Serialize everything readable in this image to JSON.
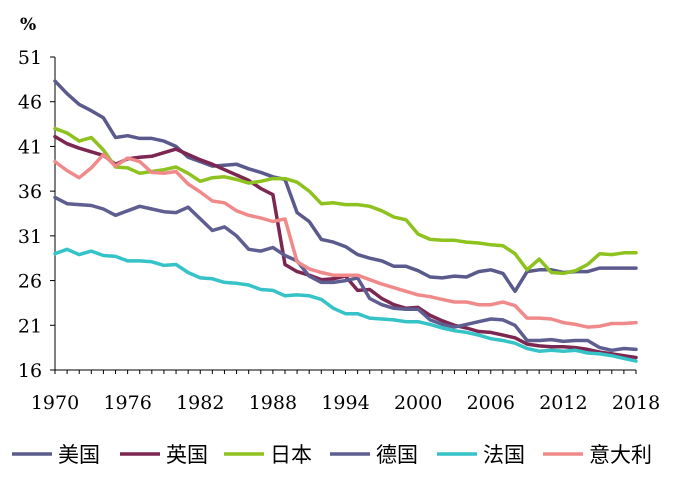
{
  "chart_data": {
    "type": "line",
    "title": "",
    "ylabel": "%",
    "xlabel": "",
    "ylim": [
      16,
      51
    ],
    "xlim": [
      1970,
      2018
    ],
    "yticks": [
      16,
      21,
      26,
      31,
      36,
      41,
      46,
      51
    ],
    "xticks": [
      1970,
      1976,
      1982,
      1988,
      1994,
      2000,
      2006,
      2012,
      2018
    ],
    "legend_position": "bottom",
    "series": [
      {
        "name": "美国",
        "color": "#5b5a8c",
        "x": [
          1970,
          1971,
          1972,
          1973,
          1974,
          1975,
          1976,
          1977,
          1978,
          1979,
          1980,
          1981,
          1982,
          1983,
          1984,
          1985,
          1986,
          1987,
          1988,
          1989,
          1990,
          1991,
          1992,
          1993,
          1994,
          1995,
          1996,
          1997,
          1998,
          1999,
          2000,
          2001,
          2002,
          2003,
          2004,
          2005,
          2006,
          2007,
          2008,
          2009,
          2010,
          2011,
          2012,
          2013,
          2014,
          2015,
          2016,
          2017,
          2018
        ],
        "values": [
          48.3,
          46.9,
          45.7,
          45.0,
          44.2,
          42.0,
          42.2,
          41.9,
          41.9,
          41.6,
          41.0,
          39.8,
          39.3,
          38.8,
          38.9,
          39.0,
          38.5,
          38.1,
          37.6,
          37.3,
          33.6,
          32.6,
          30.6,
          30.3,
          29.8,
          28.9,
          28.5,
          28.2,
          27.6,
          27.6,
          27.1,
          26.4,
          26.3,
          26.5,
          26.4,
          27.0,
          27.2,
          26.8,
          24.8,
          27.0,
          27.2,
          27.2,
          26.9,
          27.0,
          27.0,
          27.4,
          27.4,
          27.4,
          27.4
        ]
      },
      {
        "name": "英国",
        "color": "#7b2752",
        "x": [
          1970,
          1971,
          1972,
          1973,
          1974,
          1975,
          1976,
          1977,
          1978,
          1979,
          1980,
          1981,
          1982,
          1983,
          1984,
          1985,
          1986,
          1987,
          1988,
          1989,
          1990,
          1991,
          1992,
          1993,
          1994,
          1995,
          1996,
          1997,
          1998,
          1999,
          2000,
          2001,
          2002,
          2003,
          2004,
          2005,
          2006,
          2007,
          2008,
          2009,
          2010,
          2011,
          2012,
          2013,
          2014,
          2015,
          2016,
          2017,
          2018
        ],
        "values": [
          42.1,
          41.3,
          40.8,
          40.4,
          40.0,
          39.0,
          39.6,
          39.8,
          39.9,
          40.3,
          40.7,
          40.1,
          39.5,
          39.0,
          38.4,
          37.8,
          37.2,
          36.3,
          35.6,
          27.8,
          27.0,
          26.6,
          26.1,
          26.2,
          26.5,
          24.9,
          25.0,
          24.0,
          23.3,
          22.9,
          23.0,
          22.1,
          21.5,
          21.0,
          20.7,
          20.3,
          20.2,
          19.9,
          19.6,
          18.9,
          18.7,
          18.6,
          18.6,
          18.5,
          18.3,
          18.0,
          17.8,
          17.6,
          17.4
        ]
      },
      {
        "name": "日本",
        "color": "#8dc21f",
        "x": [
          1970,
          1971,
          1972,
          1973,
          1974,
          1975,
          1976,
          1977,
          1978,
          1979,
          1980,
          1981,
          1982,
          1983,
          1984,
          1985,
          1986,
          1987,
          1988,
          1989,
          1990,
          1991,
          1992,
          1993,
          1994,
          1995,
          1996,
          1997,
          1998,
          1999,
          2000,
          2001,
          2002,
          2003,
          2004,
          2005,
          2006,
          2007,
          2008,
          2009,
          2010,
          2011,
          2012,
          2013,
          2014,
          2015,
          2016,
          2017,
          2018
        ],
        "values": [
          43.0,
          42.5,
          41.6,
          42.0,
          40.6,
          38.7,
          38.6,
          38.0,
          38.2,
          38.4,
          38.7,
          38.0,
          37.1,
          37.5,
          37.6,
          37.3,
          36.9,
          37.1,
          37.4,
          37.4,
          37.0,
          36.0,
          34.6,
          34.7,
          34.5,
          34.5,
          34.3,
          33.8,
          33.1,
          32.8,
          31.2,
          30.6,
          30.5,
          30.5,
          30.3,
          30.2,
          30.0,
          29.9,
          29.0,
          27.2,
          28.4,
          26.9,
          26.8,
          27.1,
          27.8,
          29.0,
          28.9,
          29.1,
          29.1
        ]
      },
      {
        "name": "德国",
        "color": "#5f5e91",
        "x": [
          1970,
          1971,
          1972,
          1973,
          1974,
          1975,
          1976,
          1977,
          1978,
          1979,
          1980,
          1981,
          1982,
          1983,
          1984,
          1985,
          1986,
          1987,
          1988,
          1989,
          1990,
          1991,
          1992,
          1993,
          1994,
          1995,
          1996,
          1997,
          1998,
          1999,
          2000,
          2001,
          2002,
          2003,
          2004,
          2005,
          2006,
          2007,
          2008,
          2009,
          2010,
          2011,
          2012,
          2013,
          2014,
          2015,
          2016,
          2017,
          2018
        ],
        "values": [
          35.3,
          34.6,
          34.5,
          34.4,
          34.0,
          33.3,
          33.8,
          34.3,
          34.0,
          33.7,
          33.6,
          34.2,
          32.9,
          31.6,
          32.0,
          31.0,
          29.5,
          29.3,
          29.7,
          28.8,
          28.2,
          26.5,
          25.8,
          25.8,
          26.0,
          26.3,
          24.0,
          23.3,
          22.9,
          22.8,
          22.8,
          21.6,
          21.1,
          20.8,
          21.1,
          21.4,
          21.7,
          21.6,
          21.0,
          19.3,
          19.3,
          19.4,
          19.2,
          19.3,
          19.3,
          18.5,
          18.2,
          18.4,
          18.3
        ]
      },
      {
        "name": "法国",
        "color": "#35c3c8",
        "x": [
          1970,
          1971,
          1972,
          1973,
          1974,
          1975,
          1976,
          1977,
          1978,
          1979,
          1980,
          1981,
          1982,
          1983,
          1984,
          1985,
          1986,
          1987,
          1988,
          1989,
          1990,
          1991,
          1992,
          1993,
          1994,
          1995,
          1996,
          1997,
          1998,
          1999,
          2000,
          2001,
          2002,
          2003,
          2004,
          2005,
          2006,
          2007,
          2008,
          2009,
          2010,
          2011,
          2012,
          2013,
          2014,
          2015,
          2016,
          2017,
          2018
        ],
        "values": [
          29.0,
          29.5,
          28.9,
          29.3,
          28.8,
          28.7,
          28.2,
          28.2,
          28.1,
          27.7,
          27.8,
          26.9,
          26.3,
          26.2,
          25.8,
          25.7,
          25.5,
          25.0,
          24.9,
          24.3,
          24.4,
          24.3,
          23.9,
          22.9,
          22.3,
          22.3,
          21.8,
          21.7,
          21.6,
          21.4,
          21.4,
          21.1,
          20.7,
          20.4,
          20.2,
          19.9,
          19.5,
          19.3,
          19.0,
          18.4,
          18.1,
          18.2,
          18.1,
          18.2,
          17.9,
          17.8,
          17.6,
          17.3,
          17.0
        ]
      },
      {
        "name": "意大利",
        "color": "#f08a8a",
        "x": [
          1970,
          1971,
          1972,
          1973,
          1974,
          1975,
          1976,
          1977,
          1978,
          1979,
          1980,
          1981,
          1982,
          1983,
          1984,
          1985,
          1986,
          1987,
          1988,
          1989,
          1990,
          1991,
          1992,
          1993,
          1994,
          1995,
          1996,
          1997,
          1998,
          1999,
          2000,
          2001,
          2002,
          2003,
          2004,
          2005,
          2006,
          2007,
          2008,
          2009,
          2010,
          2011,
          2012,
          2013,
          2014,
          2015,
          2016,
          2017,
          2018
        ],
        "values": [
          39.3,
          38.3,
          37.5,
          38.6,
          40.1,
          38.8,
          39.7,
          39.3,
          38.1,
          38.0,
          38.2,
          36.8,
          35.9,
          34.9,
          34.7,
          33.8,
          33.3,
          33.0,
          32.6,
          32.9,
          28.1,
          27.3,
          26.9,
          26.6,
          26.6,
          26.6,
          26.1,
          25.6,
          25.2,
          24.8,
          24.4,
          24.2,
          23.9,
          23.6,
          23.6,
          23.3,
          23.3,
          23.6,
          23.2,
          21.8,
          21.8,
          21.7,
          21.3,
          21.1,
          20.8,
          20.9,
          21.2,
          21.2,
          21.3
        ]
      }
    ]
  }
}
